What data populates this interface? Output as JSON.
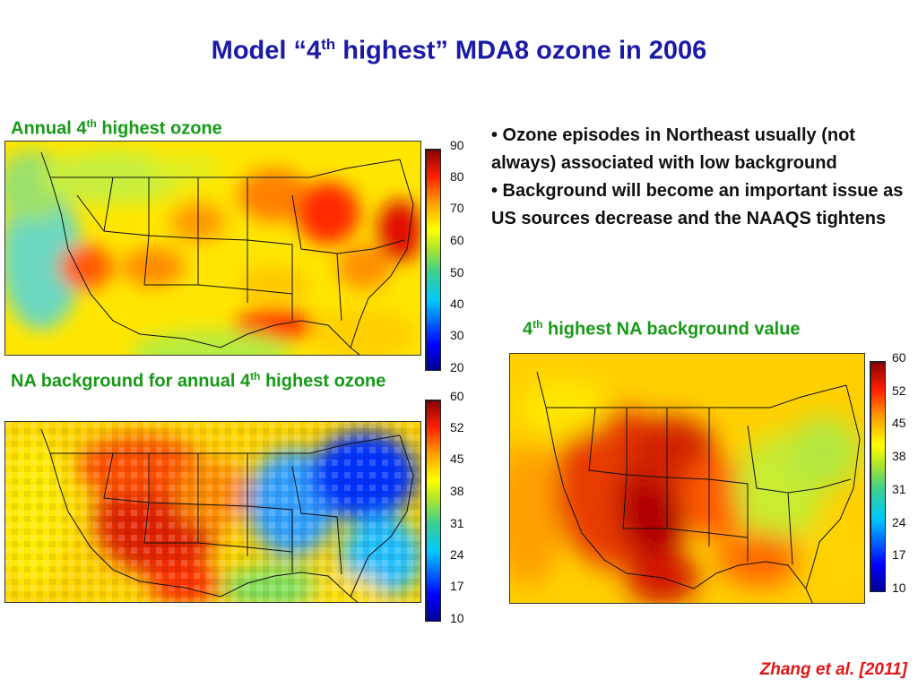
{
  "title": {
    "main": "Model “4",
    "sup": "th",
    "rest": " highest” MDA8 ozone in 2006"
  },
  "panels": [
    {
      "caption_pre": "Annual 4",
      "caption_sup": "th",
      "caption_post": " highest ozone",
      "colorbar_ticks": [
        "90",
        "80",
        "70",
        "60",
        "50",
        "40",
        "30",
        "20"
      ],
      "colors": {
        "high": "#a30000",
        "low": "#0000a0"
      }
    },
    {
      "caption_pre": "NA background for annual 4",
      "caption_sup": "th",
      "caption_post": " highest ozone",
      "colorbar_ticks": [
        "60",
        "52",
        "45",
        "38",
        "31",
        "24",
        "17",
        "10"
      ]
    },
    {
      "caption_pre": "4",
      "caption_sup": "th",
      "caption_post": " highest NA background value",
      "colorbar_ticks": [
        "60",
        "52",
        "45",
        "38",
        "31",
        "24",
        "17",
        "10"
      ]
    }
  ],
  "bullets": [
    "• Ozone episodes in Northeast usually (not always) associated with low background",
    "• Background will become an important issue as US sources decrease and the NAAQS tightens"
  ],
  "citation": "Zhang et al. [2011]"
}
